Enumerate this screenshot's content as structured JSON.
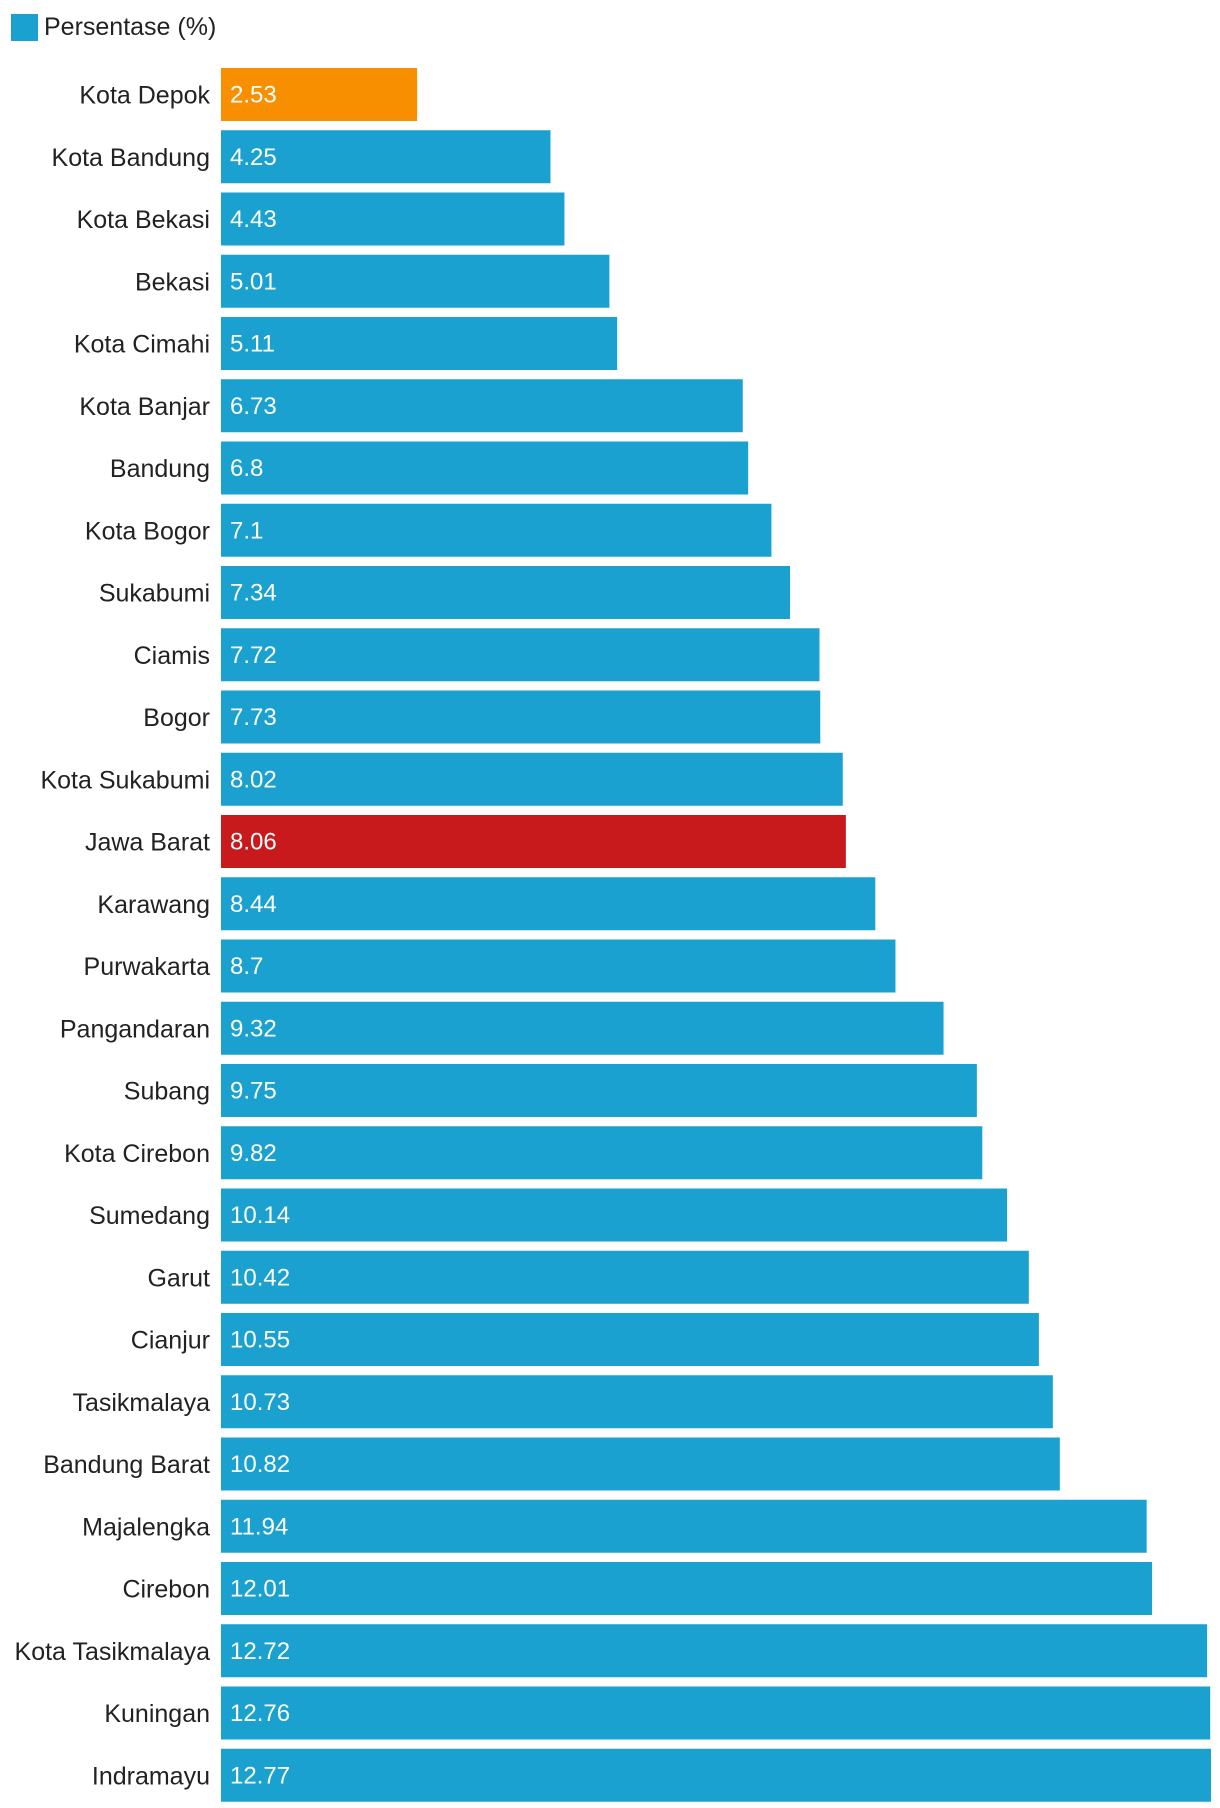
{
  "chart_data": {
    "type": "bar",
    "orientation": "horizontal",
    "legend": {
      "position": "top-left",
      "entries": [
        {
          "label": "Persentase (%)",
          "color": "#1aa1cf"
        }
      ]
    },
    "grid": false,
    "xlim": [
      0,
      12.77
    ],
    "categories": [
      "Kota Depok",
      "Kota Bandung",
      "Kota Bekasi",
      "Bekasi",
      "Kota Cimahi",
      "Kota Banjar",
      "Bandung",
      "Kota Bogor",
      "Sukabumi",
      "Ciamis",
      "Bogor",
      "Kota Sukabumi",
      "Jawa Barat",
      "Karawang",
      "Purwakarta",
      "Pangandaran",
      "Subang",
      "Kota Cirebon",
      "Sumedang",
      "Garut",
      "Cianjur",
      "Tasikmalaya",
      "Bandung Barat",
      "Majalengka",
      "Cirebon",
      "Kota Tasikmalaya",
      "Kuningan",
      "Indramayu"
    ],
    "series": [
      {
        "name": "Persentase (%)",
        "values": [
          2.53,
          4.25,
          4.43,
          5.01,
          5.11,
          6.73,
          6.8,
          7.1,
          7.34,
          7.72,
          7.73,
          8.02,
          8.06,
          8.44,
          8.7,
          9.32,
          9.75,
          9.82,
          10.14,
          10.42,
          10.55,
          10.73,
          10.82,
          11.94,
          12.01,
          12.72,
          12.76,
          12.77
        ],
        "value_labels": [
          "2.53",
          "4.25",
          "4.43",
          "5.01",
          "5.11",
          "6.73",
          "6.8",
          "7.1",
          "7.34",
          "7.72",
          "7.73",
          "8.02",
          "8.06",
          "8.44",
          "8.7",
          "9.32",
          "9.75",
          "9.82",
          "10.14",
          "10.42",
          "10.55",
          "10.73",
          "10.82",
          "11.94",
          "12.01",
          "12.72",
          "12.76",
          "12.77"
        ]
      }
    ],
    "colors": {
      "default": "#1aa1cf",
      "highlight_min": "#f88f00",
      "highlight_region": "#c8191c"
    },
    "highlights": {
      "Kota Depok": "#f88f00",
      "Jawa Barat": "#c8191c"
    }
  }
}
